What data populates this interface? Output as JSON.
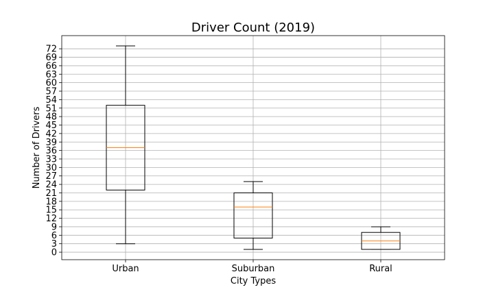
{
  "chart_data": {
    "type": "box",
    "title": "Driver Count (2019)",
    "xlabel": "City Types",
    "ylabel": "Number of Drivers",
    "categories": [
      "Urban",
      "Suburban",
      "Rural"
    ],
    "boxes": [
      {
        "category": "Urban",
        "whisker_low": 3,
        "q1": 22,
        "median": 37,
        "q3": 52,
        "whisker_high": 73
      },
      {
        "category": "Suburban",
        "whisker_low": 1,
        "q1": 5,
        "median": 16,
        "q3": 21,
        "whisker_high": 25
      },
      {
        "category": "Rural",
        "whisker_low": 1,
        "q1": 1,
        "median": 4,
        "q3": 7,
        "whisker_high": 9
      }
    ],
    "yticks": [
      0,
      3,
      6,
      9,
      12,
      15,
      18,
      21,
      24,
      27,
      30,
      33,
      36,
      39,
      42,
      45,
      48,
      51,
      54,
      57,
      60,
      63,
      66,
      69,
      72
    ],
    "ylim": [
      -2.65,
      76.65
    ],
    "grid": true,
    "colors": {
      "median": "#ff7f0e",
      "box": "#000000",
      "grid": "#b0b0b0"
    }
  }
}
